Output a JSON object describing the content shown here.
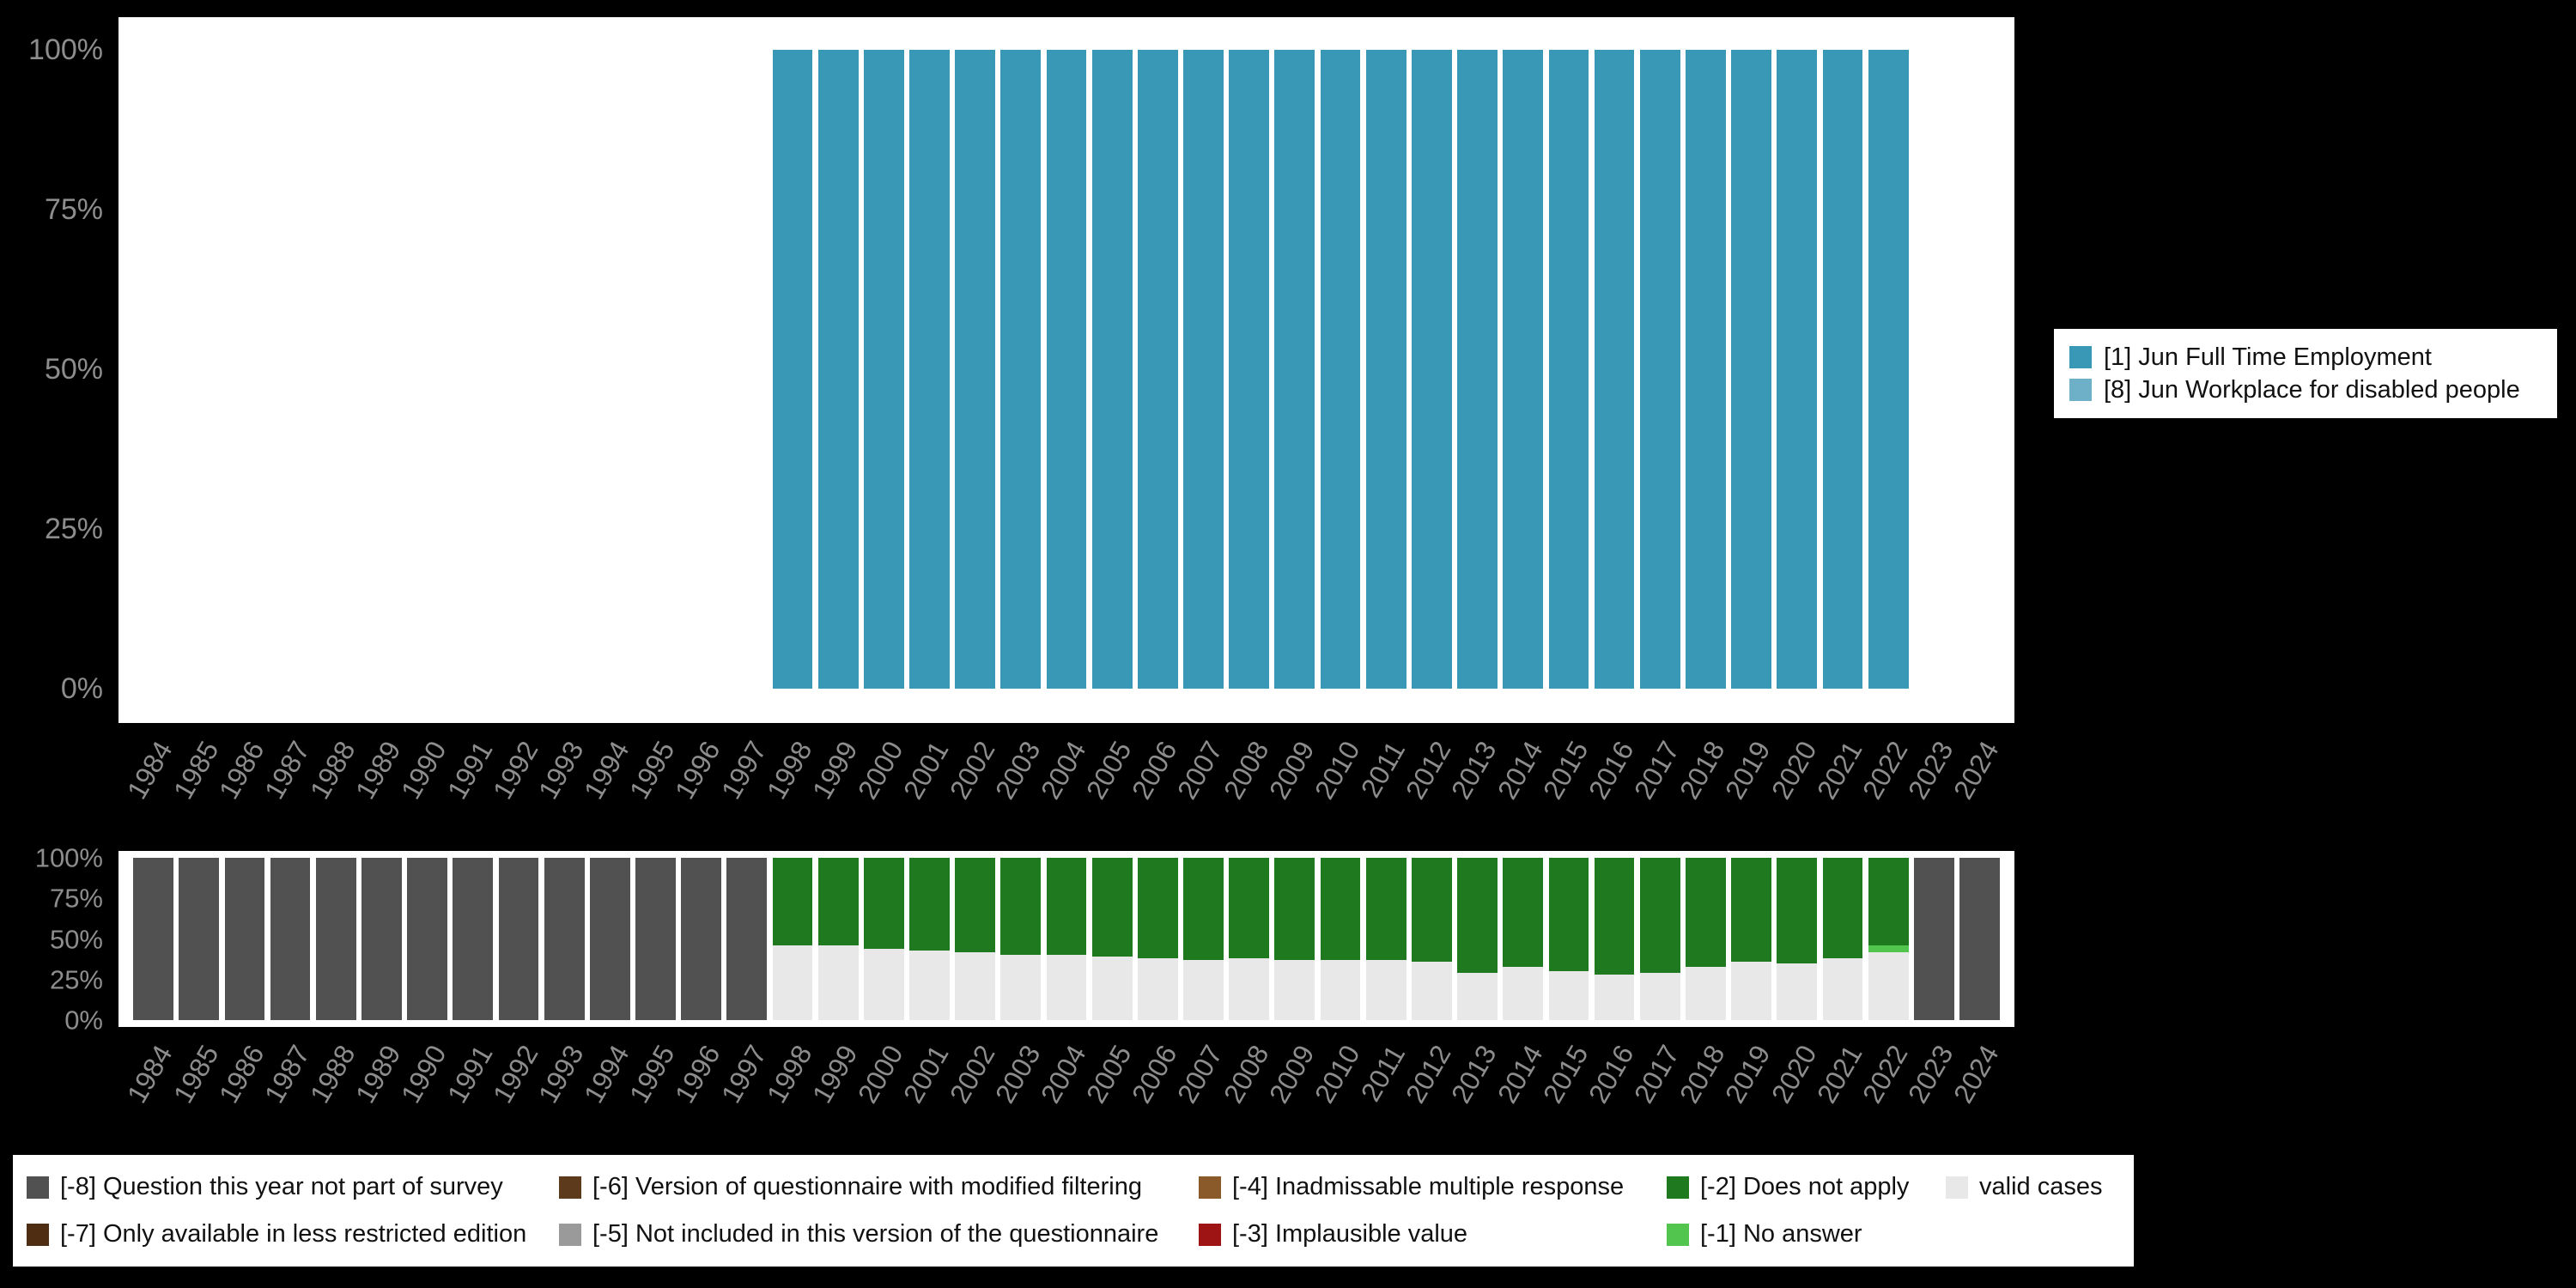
{
  "page": {
    "background": "#000000"
  },
  "frequencies_legend": {
    "items": [
      {
        "label": "[1] Jun Full Time Employment",
        "color": "#3898b5"
      },
      {
        "label": "[8] Jun Workplace for disabled people",
        "color": "#6db0c8"
      }
    ]
  },
  "missing_legend": {
    "columns": [
      [
        {
          "label": "[-8] Question this year not part of survey",
          "color": "#515151"
        },
        {
          "label": "[-7] Only available in less restricted edition",
          "color": "#4f2d12"
        }
      ],
      [
        {
          "label": "[-6] Version of questionnaire with modified filtering",
          "color": "#5e3a1c"
        },
        {
          "label": "[-5] Not included in this version of the questionnaire",
          "color": "#9a9a9a"
        }
      ],
      [
        {
          "label": "[-4] Inadmissable multiple response",
          "color": "#8a5a2a"
        },
        {
          "label": "[-3] Implausible value",
          "color": "#9e1313"
        }
      ],
      [
        {
          "label": "[-2] Does not apply",
          "color": "#1f7a1f"
        },
        {
          "label": "[-1] No answer",
          "color": "#52c54e"
        }
      ],
      [
        {
          "label": "valid cases",
          "color": "#e8e8e8"
        }
      ]
    ]
  },
  "chart_data": [
    {
      "id": "frequencies-by-year",
      "type": "bar",
      "stacked": true,
      "x": [
        "1984",
        "1985",
        "1986",
        "1987",
        "1988",
        "1989",
        "1990",
        "1991",
        "1992",
        "1993",
        "1994",
        "1995",
        "1996",
        "1997",
        "1998",
        "1999",
        "2000",
        "2001",
        "2002",
        "2003",
        "2004",
        "2005",
        "2006",
        "2007",
        "2008",
        "2009",
        "2010",
        "2011",
        "2012",
        "2013",
        "2014",
        "2015",
        "2016",
        "2017",
        "2018",
        "2019",
        "2020",
        "2021",
        "2022",
        "2023",
        "2024"
      ],
      "ylim": [
        0,
        100
      ],
      "yticks": [
        0,
        25,
        50,
        75,
        100
      ],
      "ytick_labels": [
        "0%",
        "25%",
        "50%",
        "75%",
        "100%"
      ],
      "legend_position": "right",
      "grid": false,
      "series": [
        {
          "name": "[1] Jun Full Time Employment",
          "color": "#3898b5",
          "values": [
            0,
            0,
            0,
            0,
            0,
            0,
            0,
            0,
            0,
            0,
            0,
            0,
            0,
            0,
            100,
            100,
            100,
            100,
            100,
            100,
            100,
            100,
            100,
            100,
            100,
            100,
            100,
            100,
            100,
            100,
            100,
            100,
            100,
            100,
            100,
            100,
            100,
            100,
            100,
            0,
            0
          ]
        },
        {
          "name": "[8] Jun Workplace for disabled people",
          "color": "#6db0c8",
          "values": [
            0,
            0,
            0,
            0,
            0,
            0,
            0,
            0,
            0,
            0,
            0,
            0,
            0,
            0,
            0,
            0,
            0,
            0,
            0,
            0,
            0,
            0,
            0,
            0,
            0,
            0,
            0,
            0,
            0,
            0,
            0,
            0,
            0,
            0,
            0,
            0,
            0,
            0,
            0,
            0,
            0
          ]
        }
      ]
    },
    {
      "id": "missing-values-by-year",
      "type": "bar",
      "stacked": true,
      "x": [
        "1984",
        "1985",
        "1986",
        "1987",
        "1988",
        "1989",
        "1990",
        "1991",
        "1992",
        "1993",
        "1994",
        "1995",
        "1996",
        "1997",
        "1998",
        "1999",
        "2000",
        "2001",
        "2002",
        "2003",
        "2004",
        "2005",
        "2006",
        "2007",
        "2008",
        "2009",
        "2010",
        "2011",
        "2012",
        "2013",
        "2014",
        "2015",
        "2016",
        "2017",
        "2018",
        "2019",
        "2020",
        "2021",
        "2022",
        "2023",
        "2024"
      ],
      "ylim": [
        0,
        100
      ],
      "yticks": [
        0,
        25,
        50,
        75,
        100
      ],
      "ytick_labels": [
        "0%",
        "25%",
        "50%",
        "75%",
        "100%"
      ],
      "legend_position": "bottom",
      "grid": false,
      "series": [
        {
          "name": "valid cases",
          "color": "#e8e8e8",
          "values": [
            0,
            0,
            0,
            0,
            0,
            0,
            0,
            0,
            0,
            0,
            0,
            0,
            0,
            0,
            46,
            46,
            44,
            43,
            42,
            40,
            40,
            39,
            38,
            37,
            38,
            37,
            37,
            37,
            36,
            29,
            33,
            30,
            28,
            29,
            33,
            36,
            35,
            38,
            42,
            0,
            0
          ]
        },
        {
          "name": "[-1] No answer",
          "color": "#52c54e",
          "values": [
            0,
            0,
            0,
            0,
            0,
            0,
            0,
            0,
            0,
            0,
            0,
            0,
            0,
            0,
            0,
            0,
            0,
            0,
            0,
            0,
            0,
            0,
            0,
            0,
            0,
            0,
            0,
            0,
            0,
            0,
            0,
            0,
            0,
            0,
            0,
            0,
            0,
            0,
            4,
            0,
            0
          ]
        },
        {
          "name": "[-2] Does not apply",
          "color": "#1f7a1f",
          "values": [
            0,
            0,
            0,
            0,
            0,
            0,
            0,
            0,
            0,
            0,
            0,
            0,
            0,
            0,
            54,
            54,
            56,
            57,
            58,
            60,
            60,
            61,
            62,
            63,
            62,
            63,
            63,
            63,
            64,
            71,
            67,
            70,
            72,
            71,
            67,
            64,
            65,
            62,
            54,
            0,
            0
          ]
        },
        {
          "name": "[-8] Question this year not part of survey",
          "color": "#515151",
          "values": [
            100,
            100,
            100,
            100,
            100,
            100,
            100,
            100,
            100,
            100,
            100,
            100,
            100,
            100,
            0,
            0,
            0,
            0,
            0,
            0,
            0,
            0,
            0,
            0,
            0,
            0,
            0,
            0,
            0,
            0,
            0,
            0,
            0,
            0,
            0,
            0,
            0,
            0,
            0,
            100,
            100
          ]
        }
      ]
    }
  ]
}
